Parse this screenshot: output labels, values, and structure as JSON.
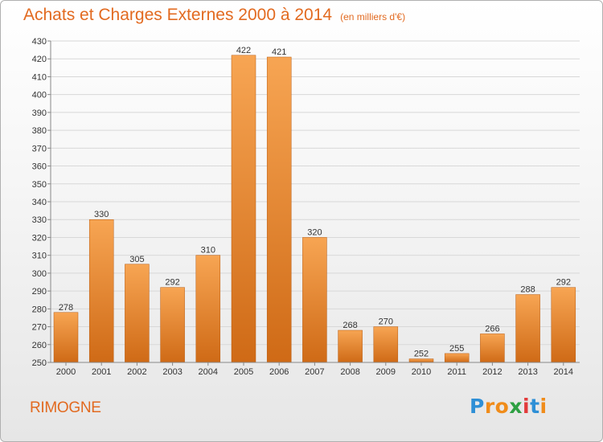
{
  "header": {
    "title": "Achats et Charges Externes 2000 à 2014",
    "unit": "(en milliers d'€)"
  },
  "footer": {
    "commune": "RIMOGNE",
    "logo": {
      "letters": [
        "P",
        "r",
        "o",
        "x",
        "i",
        "t",
        "i"
      ],
      "colors": [
        "#2e8fd6",
        "#f08c1a",
        "#f08c1a",
        "#2ea043",
        "#e23b3b",
        "#2e8fd6",
        "#f08c1a"
      ]
    }
  },
  "colors": {
    "bar_light": "#f7a553",
    "bar_dark": "#cf6a16",
    "title": "#e26a20",
    "grid": "#d8d8d8"
  },
  "chart_data": {
    "type": "bar",
    "title": "Achats et Charges Externes 2000 à 2014",
    "subtitle": "(en milliers d'€)",
    "xlabel": "",
    "ylabel": "",
    "categories": [
      "2000",
      "2001",
      "2002",
      "2003",
      "2004",
      "2005",
      "2006",
      "2007",
      "2008",
      "2009",
      "2010",
      "2011",
      "2012",
      "2013",
      "2014"
    ],
    "values": [
      278,
      330,
      305,
      292,
      310,
      422,
      421,
      320,
      268,
      270,
      252,
      255,
      266,
      288,
      292
    ],
    "ylim": [
      250,
      430
    ],
    "yticks": [
      250,
      260,
      270,
      280,
      290,
      300,
      310,
      320,
      330,
      340,
      350,
      360,
      370,
      380,
      390,
      400,
      410,
      420,
      430
    ],
    "grid": true,
    "legend": "none"
  }
}
